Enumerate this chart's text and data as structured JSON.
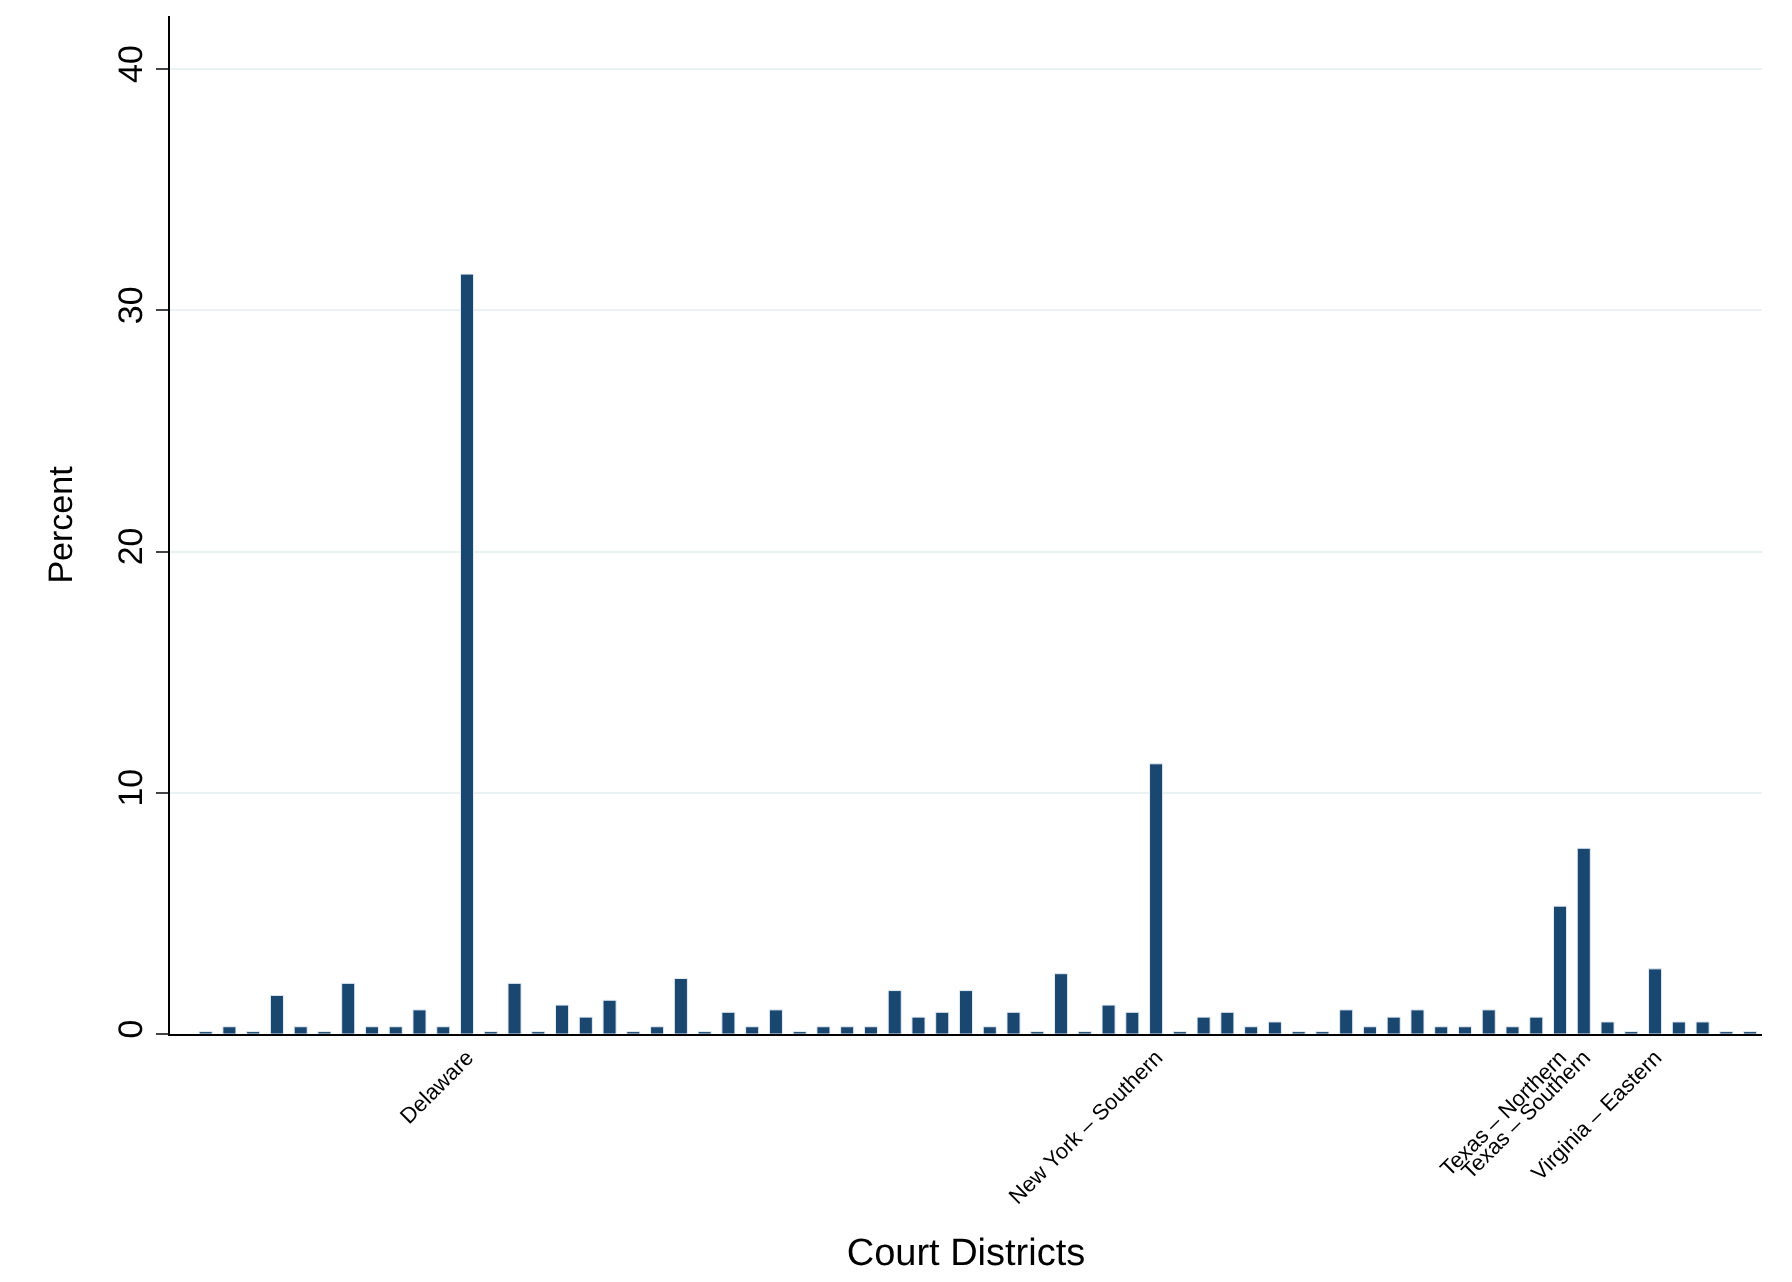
{
  "chart_data": {
    "type": "bar",
    "xlabel": "Court Districts",
    "ylabel": "Percent",
    "categories": [
      null,
      null,
      null,
      null,
      null,
      null,
      null,
      null,
      null,
      null,
      null,
      "Delaware",
      null,
      null,
      null,
      null,
      null,
      null,
      null,
      null,
      null,
      null,
      null,
      null,
      null,
      null,
      null,
      null,
      null,
      null,
      null,
      null,
      null,
      null,
      null,
      null,
      null,
      null,
      null,
      null,
      "New York – Southern",
      null,
      null,
      null,
      null,
      null,
      null,
      null,
      null,
      null,
      null,
      null,
      null,
      null,
      null,
      null,
      null,
      "Texas – Northern",
      "Texas – Southern",
      null,
      null,
      "Virginia – Eastern",
      null,
      null,
      null,
      null
    ],
    "values": [
      0.1,
      0.3,
      0.1,
      1.6,
      0.3,
      0.1,
      2.1,
      0.3,
      0.3,
      1.0,
      0.3,
      31.5,
      0.1,
      2.1,
      0.1,
      1.2,
      0.7,
      1.4,
      0.1,
      0.3,
      2.3,
      0.1,
      0.9,
      0.3,
      1.0,
      0.1,
      0.3,
      0.3,
      0.3,
      1.8,
      0.7,
      0.9,
      1.8,
      0.3,
      0.9,
      0.1,
      2.5,
      0.1,
      1.2,
      0.9,
      11.2,
      0.1,
      0.7,
      0.9,
      0.3,
      0.5,
      0.1,
      0.1,
      1.0,
      0.3,
      0.7,
      1.0,
      0.3,
      0.3,
      1.0,
      0.3,
      0.7,
      5.3,
      7.7,
      0.5,
      0.1,
      2.7,
      0.5,
      0.5,
      0.1,
      0.1
    ],
    "color": "#1a476f",
    "ylim": [
      0,
      42.2
    ],
    "yticks": [
      0,
      10,
      20,
      30,
      40
    ],
    "grid": "y"
  }
}
